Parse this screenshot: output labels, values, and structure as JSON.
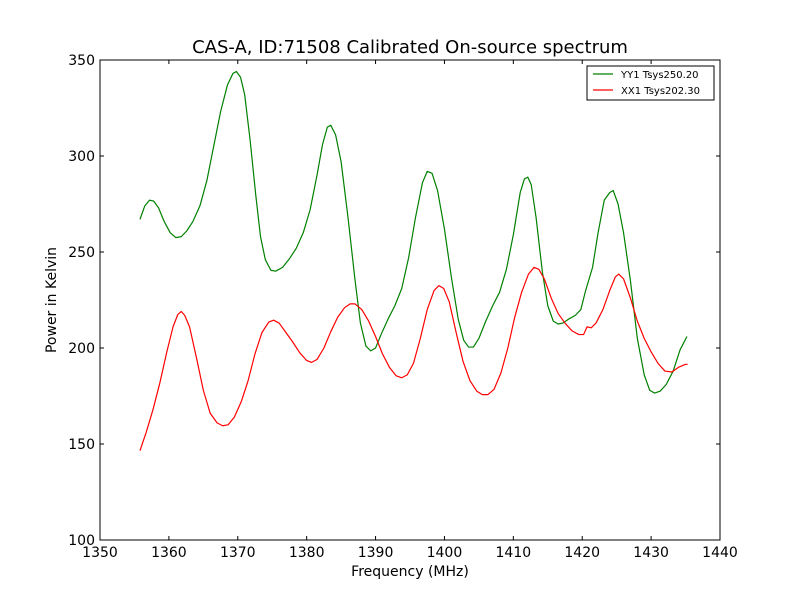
{
  "chart_data": {
    "type": "line",
    "title": "CAS-A, ID:71508 Calibrated On-source spectrum",
    "xlabel": "Frequency (MHz)",
    "ylabel": "Power in Kelvin",
    "xlim": [
      1350,
      1440
    ],
    "ylim": [
      100,
      350
    ],
    "xticks": [
      1350,
      1360,
      1370,
      1380,
      1390,
      1400,
      1410,
      1420,
      1430,
      1440
    ],
    "yticks": [
      100,
      150,
      200,
      250,
      300,
      350
    ],
    "grid": false,
    "legend_position": "top-right",
    "series": [
      {
        "name": "YY1 Tsys250.20",
        "color": "#008000",
        "points": [
          [
            1355.8,
            267
          ],
          [
            1356.5,
            274
          ],
          [
            1357.2,
            277
          ],
          [
            1357.8,
            276.5
          ],
          [
            1358.5,
            273
          ],
          [
            1359.3,
            266
          ],
          [
            1360.2,
            260
          ],
          [
            1361,
            257.5
          ],
          [
            1361.8,
            258
          ],
          [
            1362.6,
            261
          ],
          [
            1363.5,
            266
          ],
          [
            1364.5,
            274
          ],
          [
            1365.5,
            287
          ],
          [
            1366.5,
            305
          ],
          [
            1367.5,
            323
          ],
          [
            1368.5,
            337
          ],
          [
            1369.3,
            343
          ],
          [
            1369.8,
            344
          ],
          [
            1370.4,
            341
          ],
          [
            1371,
            332
          ],
          [
            1371.8,
            308
          ],
          [
            1372.6,
            280
          ],
          [
            1373.3,
            258
          ],
          [
            1374,
            246
          ],
          [
            1374.8,
            240.5
          ],
          [
            1375.5,
            240
          ],
          [
            1376.5,
            242
          ],
          [
            1377.5,
            246.5
          ],
          [
            1378.5,
            252
          ],
          [
            1379.5,
            260
          ],
          [
            1380.5,
            272
          ],
          [
            1381.5,
            290
          ],
          [
            1382.3,
            306
          ],
          [
            1383,
            315
          ],
          [
            1383.5,
            316
          ],
          [
            1384.2,
            311
          ],
          [
            1385,
            297
          ],
          [
            1386,
            268
          ],
          [
            1387,
            236
          ],
          [
            1387.8,
            213
          ],
          [
            1388.6,
            201
          ],
          [
            1389.3,
            198.5
          ],
          [
            1390,
            200
          ],
          [
            1390.8,
            207
          ],
          [
            1391.8,
            215
          ],
          [
            1392.8,
            222
          ],
          [
            1393.8,
            231
          ],
          [
            1394.8,
            247
          ],
          [
            1395.8,
            268
          ],
          [
            1396.8,
            286
          ],
          [
            1397.5,
            292
          ],
          [
            1398.2,
            291
          ],
          [
            1399,
            282
          ],
          [
            1400,
            262
          ],
          [
            1401,
            237
          ],
          [
            1402,
            215
          ],
          [
            1402.8,
            204
          ],
          [
            1403.5,
            200.5
          ],
          [
            1404.2,
            200.5
          ],
          [
            1405,
            205
          ],
          [
            1406,
            214
          ],
          [
            1407,
            222
          ],
          [
            1408,
            229
          ],
          [
            1409,
            241
          ],
          [
            1410,
            259
          ],
          [
            1411,
            281
          ],
          [
            1411.6,
            288
          ],
          [
            1412.1,
            289
          ],
          [
            1412.6,
            285
          ],
          [
            1413.3,
            268
          ],
          [
            1414.2,
            240
          ],
          [
            1415,
            222
          ],
          [
            1415.8,
            214
          ],
          [
            1416.5,
            212.5
          ],
          [
            1417.2,
            213
          ],
          [
            1418,
            215
          ],
          [
            1419,
            217
          ],
          [
            1419.8,
            220
          ],
          [
            1420.5,
            230
          ],
          [
            1421.5,
            242
          ],
          [
            1422.3,
            260
          ],
          [
            1423.2,
            277
          ],
          [
            1424,
            281
          ],
          [
            1424.5,
            282
          ],
          [
            1425.2,
            275
          ],
          [
            1426,
            260
          ],
          [
            1427,
            235
          ],
          [
            1428,
            205
          ],
          [
            1429,
            186
          ],
          [
            1429.8,
            178
          ],
          [
            1430.5,
            176.5
          ],
          [
            1431.3,
            177.5
          ],
          [
            1432.2,
            181
          ],
          [
            1433.2,
            188
          ],
          [
            1434.2,
            199
          ],
          [
            1435.2,
            206
          ]
        ]
      },
      {
        "name": "XX1 Tsys202.30",
        "color": "#ff0000",
        "points": [
          [
            1355.8,
            146.5
          ],
          [
            1356.7,
            156
          ],
          [
            1357.7,
            168
          ],
          [
            1358.7,
            182
          ],
          [
            1359.7,
            198
          ],
          [
            1360.6,
            211
          ],
          [
            1361.3,
            217.5
          ],
          [
            1361.8,
            219
          ],
          [
            1362.3,
            217
          ],
          [
            1363,
            211
          ],
          [
            1364,
            195
          ],
          [
            1365,
            178
          ],
          [
            1366,
            166
          ],
          [
            1367,
            161
          ],
          [
            1367.8,
            159.5
          ],
          [
            1368.6,
            160
          ],
          [
            1369.5,
            164
          ],
          [
            1370.5,
            172
          ],
          [
            1371.5,
            183
          ],
          [
            1372.5,
            197
          ],
          [
            1373.5,
            208
          ],
          [
            1374.5,
            213.5
          ],
          [
            1375.2,
            214.5
          ],
          [
            1376,
            213
          ],
          [
            1377,
            208
          ],
          [
            1378,
            203
          ],
          [
            1379,
            197.5
          ],
          [
            1380,
            193.5
          ],
          [
            1380.7,
            192.5
          ],
          [
            1381.5,
            194
          ],
          [
            1382.5,
            200
          ],
          [
            1383.5,
            208.5
          ],
          [
            1384.5,
            216
          ],
          [
            1385.5,
            221
          ],
          [
            1386.3,
            223
          ],
          [
            1387,
            223
          ],
          [
            1388,
            220
          ],
          [
            1389,
            214
          ],
          [
            1390,
            206
          ],
          [
            1391,
            197
          ],
          [
            1392,
            190
          ],
          [
            1393,
            185.5
          ],
          [
            1393.8,
            184.5
          ],
          [
            1394.6,
            186
          ],
          [
            1395.5,
            192
          ],
          [
            1396.5,
            205
          ],
          [
            1397.5,
            220
          ],
          [
            1398.5,
            230
          ],
          [
            1399.2,
            232.5
          ],
          [
            1399.9,
            231
          ],
          [
            1400.7,
            224
          ],
          [
            1401.7,
            208
          ],
          [
            1402.7,
            193
          ],
          [
            1403.7,
            183
          ],
          [
            1404.7,
            177.5
          ],
          [
            1405.5,
            175.7
          ],
          [
            1406.3,
            175.7
          ],
          [
            1407.2,
            178.5
          ],
          [
            1408.2,
            187
          ],
          [
            1409.2,
            200
          ],
          [
            1410.2,
            216
          ],
          [
            1411.2,
            229
          ],
          [
            1412.2,
            238.5
          ],
          [
            1413,
            242
          ],
          [
            1413.7,
            241
          ],
          [
            1414.5,
            236
          ],
          [
            1415.5,
            226
          ],
          [
            1416.5,
            218
          ],
          [
            1417.5,
            213
          ],
          [
            1418.5,
            209
          ],
          [
            1419.5,
            207
          ],
          [
            1420.2,
            207
          ],
          [
            1420.7,
            211
          ],
          [
            1421.3,
            210.5
          ],
          [
            1422,
            213
          ],
          [
            1423,
            220
          ],
          [
            1424,
            230
          ],
          [
            1424.8,
            237
          ],
          [
            1425.3,
            238.5
          ],
          [
            1426,
            236
          ],
          [
            1427,
            226
          ],
          [
            1428,
            214
          ],
          [
            1429,
            205
          ],
          [
            1430,
            198
          ],
          [
            1431,
            192
          ],
          [
            1432,
            188
          ],
          [
            1433,
            187.5
          ],
          [
            1434,
            190
          ],
          [
            1435,
            191.5
          ],
          [
            1435.3,
            191.5
          ]
        ]
      }
    ]
  }
}
